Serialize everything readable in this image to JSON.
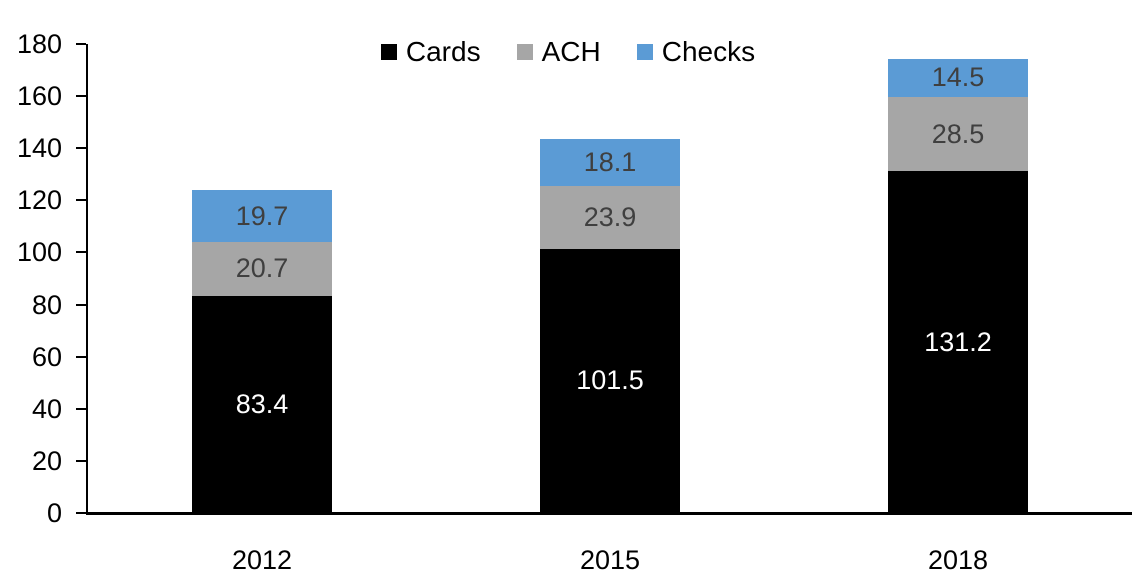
{
  "chart_data": {
    "type": "bar",
    "stacked": true,
    "title": "",
    "xlabel": "",
    "ylabel": "",
    "categories": [
      "2012",
      "2015",
      "2018"
    ],
    "series": [
      {
        "name": "Cards",
        "color": "#000000",
        "label_color": "#ffffff",
        "values": [
          83.4,
          101.5,
          131.2
        ]
      },
      {
        "name": "ACH",
        "color": "#a6a6a6",
        "label_color": "#3f3f3f",
        "values": [
          20.7,
          23.9,
          28.5
        ]
      },
      {
        "name": "Checks",
        "color": "#5b9bd5",
        "label_color": "#3f3f3f",
        "values": [
          19.7,
          18.1,
          14.5
        ]
      }
    ],
    "ylim": [
      0,
      180
    ],
    "yticks": [
      0,
      20,
      40,
      60,
      80,
      100,
      120,
      140,
      160,
      180
    ],
    "grid": false,
    "legend_position": "top",
    "axis_color": "#000000"
  }
}
